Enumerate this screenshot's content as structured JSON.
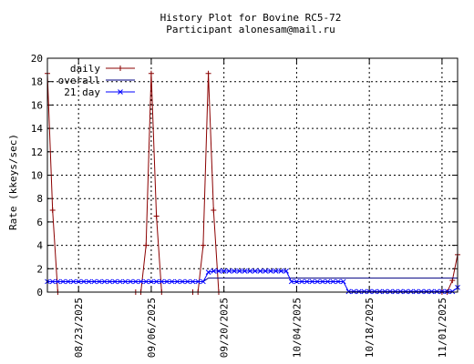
{
  "chart_data": {
    "type": "line",
    "title": "History Plot for Bovine RC5-72",
    "subtitle": "Participant alonesam@mail.ru",
    "ylabel": "Rate (kkeys/sec)",
    "xlabel": "",
    "ylim": [
      0,
      20
    ],
    "yticks": [
      0,
      2,
      4,
      6,
      8,
      10,
      12,
      14,
      16,
      18,
      20
    ],
    "xlim": [
      "2025-08-17",
      "2025-11-04"
    ],
    "xticks": [
      "08/23/2025",
      "09/06/2025",
      "09/20/2025",
      "10/04/2025",
      "10/18/2025",
      "11/01/2025"
    ],
    "grid": true,
    "legend_position": "top-left",
    "series": [
      {
        "name": "daily",
        "color": "#8b0000",
        "marker": "plus",
        "points": [
          [
            "2025-08-17",
            18.7
          ],
          [
            "2025-08-18",
            7.0
          ],
          [
            "2025-08-19",
            0
          ],
          [
            "2025-09-03",
            0
          ],
          [
            "2025-09-04",
            0
          ],
          [
            "2025-09-05",
            4.0
          ],
          [
            "2025-09-06",
            18.7
          ],
          [
            "2025-09-07",
            6.5
          ],
          [
            "2025-09-08",
            0
          ],
          [
            "2025-09-14",
            0
          ],
          [
            "2025-09-15",
            0
          ],
          [
            "2025-09-16",
            4.0
          ],
          [
            "2025-09-17",
            18.7
          ],
          [
            "2025-09-18",
            7.0
          ],
          [
            "2025-09-19",
            0
          ],
          [
            "2025-11-01",
            0
          ],
          [
            "2025-11-02",
            0
          ],
          [
            "2025-11-03",
            1.0
          ],
          [
            "2025-11-04",
            3.2
          ]
        ]
      },
      {
        "name": "overall",
        "color": "#000080",
        "marker": "none",
        "points": [
          [
            "2025-08-17",
            0.9
          ],
          [
            "2025-09-16",
            0.9
          ],
          [
            "2025-09-17",
            1.2
          ],
          [
            "2025-09-18",
            1.2
          ],
          [
            "2025-10-02",
            1.2
          ],
          [
            "2025-11-04",
            1.2
          ]
        ]
      },
      {
        "name": "21 day",
        "color": "#0000ff",
        "marker": "x",
        "points": [
          [
            "2025-08-17",
            0.9
          ],
          [
            "2025-08-18",
            0.9
          ],
          [
            "2025-08-19",
            0.9
          ],
          [
            "2025-08-20",
            0.9
          ],
          [
            "2025-08-21",
            0.9
          ],
          [
            "2025-08-22",
            0.9
          ],
          [
            "2025-08-23",
            0.9
          ],
          [
            "2025-08-24",
            0.9
          ],
          [
            "2025-08-25",
            0.9
          ],
          [
            "2025-08-26",
            0.9
          ],
          [
            "2025-08-27",
            0.9
          ],
          [
            "2025-08-28",
            0.9
          ],
          [
            "2025-08-29",
            0.9
          ],
          [
            "2025-08-30",
            0.9
          ],
          [
            "2025-08-31",
            0.9
          ],
          [
            "2025-09-01",
            0.9
          ],
          [
            "2025-09-02",
            0.9
          ],
          [
            "2025-09-03",
            0.9
          ],
          [
            "2025-09-04",
            0.9
          ],
          [
            "2025-09-05",
            0.9
          ],
          [
            "2025-09-06",
            0.9
          ],
          [
            "2025-09-07",
            0.9
          ],
          [
            "2025-09-08",
            0.9
          ],
          [
            "2025-09-09",
            0.9
          ],
          [
            "2025-09-10",
            0.9
          ],
          [
            "2025-09-11",
            0.9
          ],
          [
            "2025-09-12",
            0.9
          ],
          [
            "2025-09-13",
            0.9
          ],
          [
            "2025-09-14",
            0.9
          ],
          [
            "2025-09-15",
            0.9
          ],
          [
            "2025-09-16",
            0.9
          ],
          [
            "2025-09-17",
            1.7
          ],
          [
            "2025-09-18",
            1.8
          ],
          [
            "2025-09-19",
            1.8
          ],
          [
            "2025-09-20",
            1.8
          ],
          [
            "2025-09-21",
            1.8
          ],
          [
            "2025-09-22",
            1.8
          ],
          [
            "2025-09-23",
            1.8
          ],
          [
            "2025-09-24",
            1.8
          ],
          [
            "2025-09-25",
            1.8
          ],
          [
            "2025-09-26",
            1.8
          ],
          [
            "2025-09-27",
            1.8
          ],
          [
            "2025-09-28",
            1.8
          ],
          [
            "2025-09-29",
            1.8
          ],
          [
            "2025-09-30",
            1.8
          ],
          [
            "2025-10-01",
            1.8
          ],
          [
            "2025-10-02",
            1.8
          ],
          [
            "2025-10-03",
            0.9
          ],
          [
            "2025-10-04",
            0.9
          ],
          [
            "2025-10-05",
            0.9
          ],
          [
            "2025-10-06",
            0.9
          ],
          [
            "2025-10-07",
            0.9
          ],
          [
            "2025-10-08",
            0.9
          ],
          [
            "2025-10-09",
            0.9
          ],
          [
            "2025-10-10",
            0.9
          ],
          [
            "2025-10-11",
            0.9
          ],
          [
            "2025-10-12",
            0.9
          ],
          [
            "2025-10-13",
            0.9
          ],
          [
            "2025-10-14",
            0.05
          ],
          [
            "2025-10-15",
            0.05
          ],
          [
            "2025-10-16",
            0.05
          ],
          [
            "2025-10-17",
            0.05
          ],
          [
            "2025-10-18",
            0.05
          ],
          [
            "2025-10-19",
            0.05
          ],
          [
            "2025-10-20",
            0.05
          ],
          [
            "2025-10-21",
            0.05
          ],
          [
            "2025-10-22",
            0.05
          ],
          [
            "2025-10-23",
            0.05
          ],
          [
            "2025-10-24",
            0.05
          ],
          [
            "2025-10-25",
            0.05
          ],
          [
            "2025-10-26",
            0.05
          ],
          [
            "2025-10-27",
            0.05
          ],
          [
            "2025-10-28",
            0.05
          ],
          [
            "2025-10-29",
            0.05
          ],
          [
            "2025-10-30",
            0.05
          ],
          [
            "2025-10-31",
            0.05
          ],
          [
            "2025-11-01",
            0.05
          ],
          [
            "2025-11-02",
            0.05
          ],
          [
            "2025-11-03",
            0.05
          ],
          [
            "2025-11-04",
            0.4
          ]
        ]
      }
    ]
  }
}
